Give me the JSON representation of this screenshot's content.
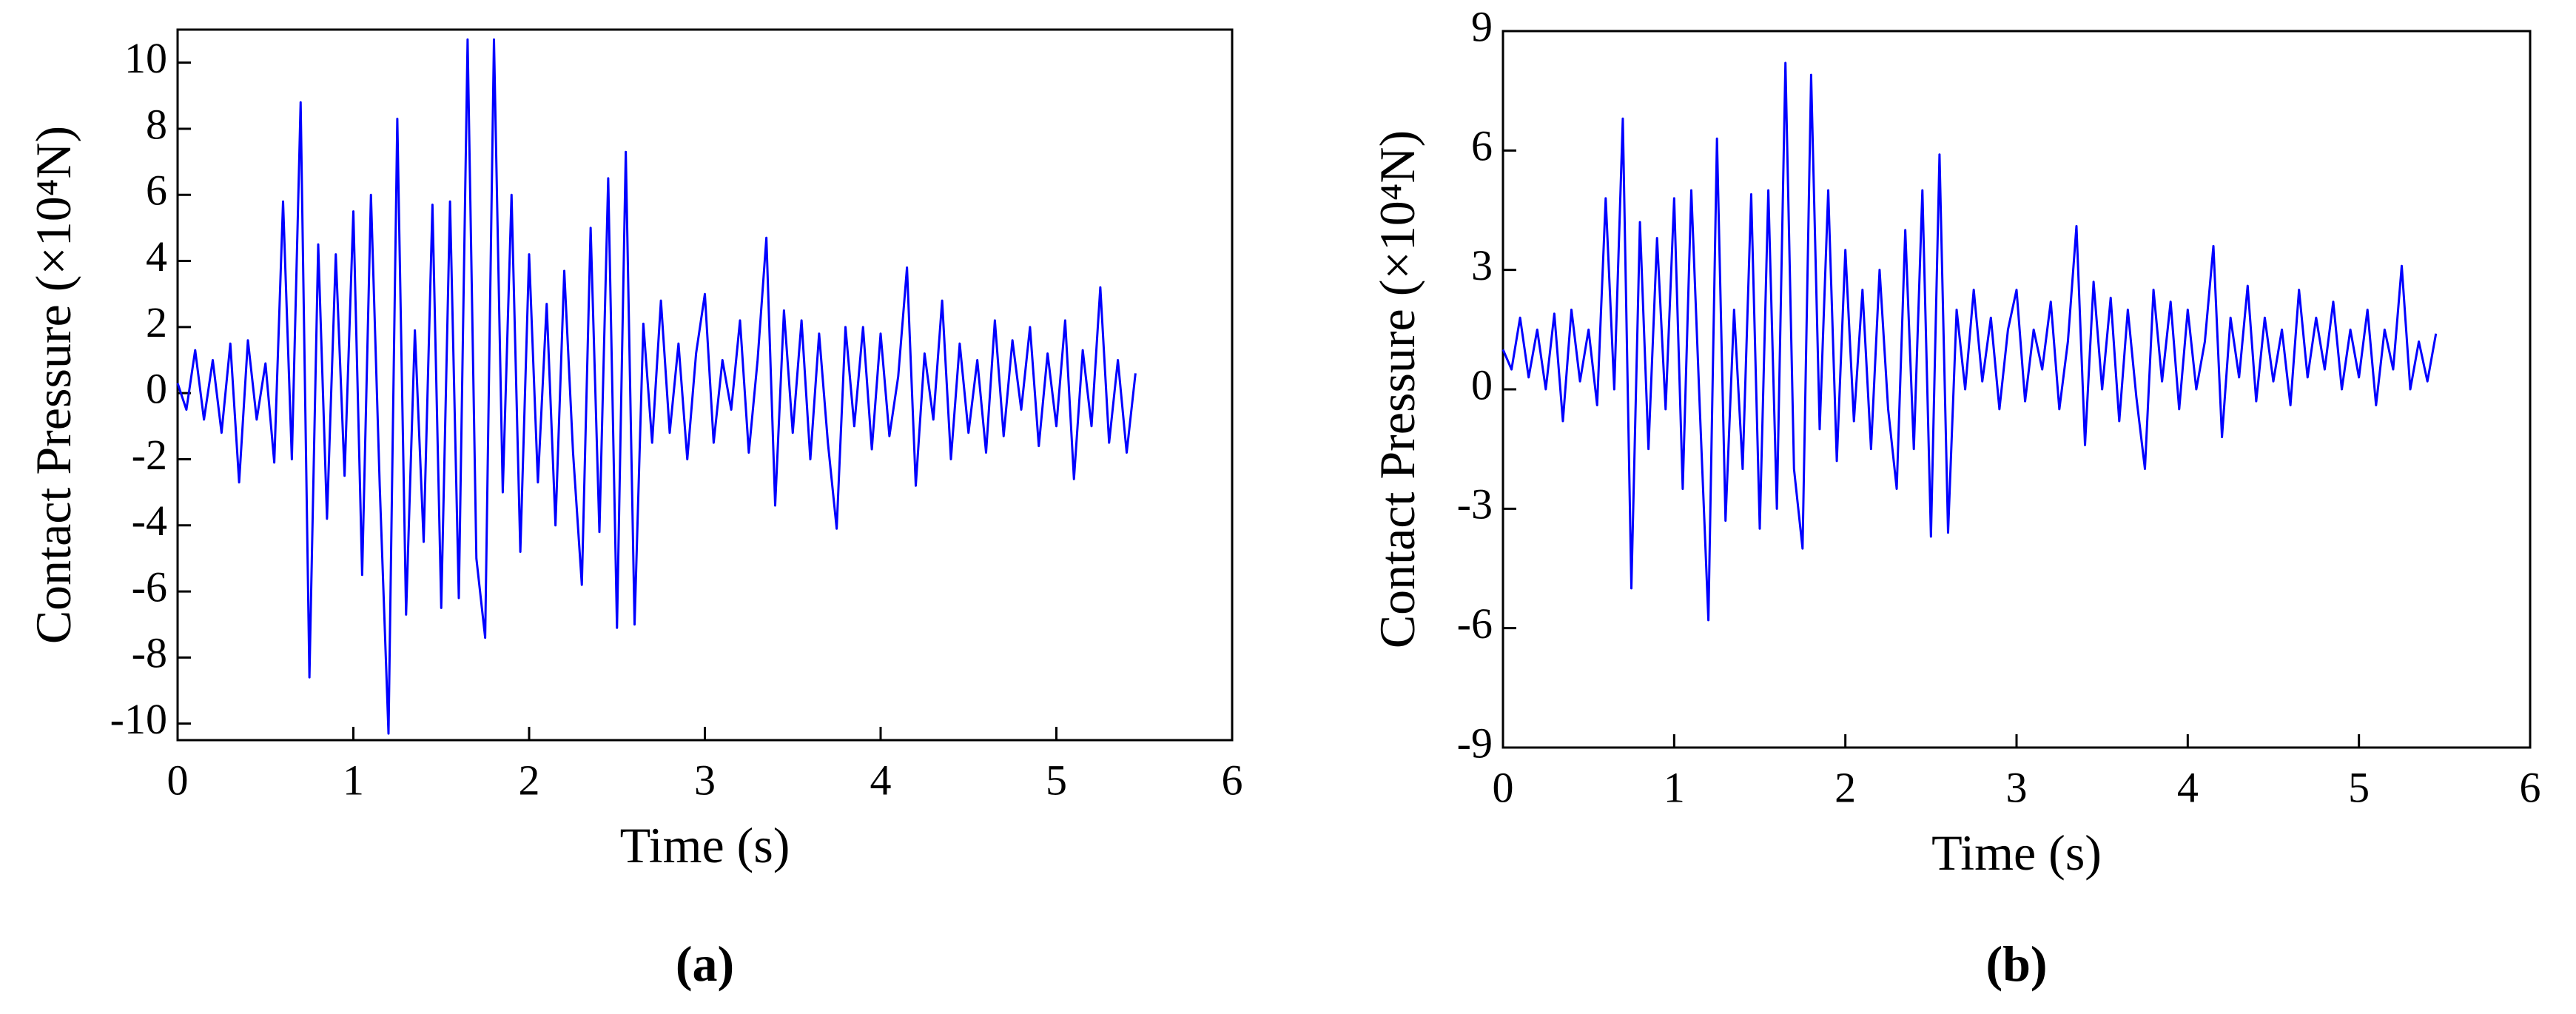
{
  "chart_data": [
    {
      "type": "line",
      "caption": "(a)",
      "xlabel": "Time (s)",
      "ylabel": "Contact Pressure (×10⁴N)",
      "xlim": [
        0,
        6
      ],
      "xticks": [
        0,
        1,
        2,
        3,
        4,
        5,
        6
      ],
      "ylim": [
        -10.5,
        11
      ],
      "yticks": [
        -10,
        -8,
        -6,
        -4,
        -2,
        0,
        2,
        4,
        6,
        8,
        10
      ],
      "x": [
        0,
        0.05,
        0.1,
        0.15,
        0.2,
        0.25,
        0.3,
        0.35,
        0.4,
        0.45,
        0.5,
        0.55,
        0.6,
        0.65,
        0.7,
        0.75,
        0.8,
        0.85,
        0.9,
        0.95,
        1,
        1.05,
        1.1,
        1.15,
        1.2,
        1.25,
        1.3,
        1.35,
        1.4,
        1.45,
        1.5,
        1.55,
        1.6,
        1.65,
        1.7,
        1.75,
        1.8,
        1.85,
        1.9,
        1.95,
        2,
        2.05,
        2.1,
        2.15,
        2.2,
        2.25,
        2.3,
        2.35,
        2.4,
        2.45,
        2.5,
        2.55,
        2.6,
        2.65,
        2.7,
        2.75,
        2.8,
        2.85,
        2.9,
        2.95,
        3,
        3.05,
        3.1,
        3.15,
        3.2,
        3.25,
        3.3,
        3.35,
        3.4,
        3.45,
        3.5,
        3.55,
        3.6,
        3.65,
        3.7,
        3.75,
        3.8,
        3.85,
        3.9,
        3.95,
        4,
        4.05,
        4.1,
        4.15,
        4.2,
        4.25,
        4.3,
        4.35,
        4.4,
        4.45,
        4.5,
        4.55,
        4.6,
        4.65,
        4.7,
        4.75,
        4.8,
        4.85,
        4.9,
        4.95,
        5,
        5.05,
        5.1,
        5.15,
        5.2,
        5.25,
        5.3,
        5.35,
        5.4,
        5.45
      ],
      "series": [
        {
          "color": "#0000ff",
          "values": [
            0.3,
            -0.5,
            1.3,
            -0.8,
            1.0,
            -1.2,
            1.5,
            -2.7,
            1.6,
            -0.8,
            0.9,
            -2.1,
            5.8,
            -2.0,
            8.8,
            -8.6,
            4.5,
            -3.8,
            4.2,
            -2.5,
            5.5,
            -5.5,
            6.0,
            -2.8,
            -10.3,
            8.3,
            -6.7,
            1.9,
            -4.5,
            5.7,
            -6.5,
            5.8,
            -6.2,
            10.7,
            -5.0,
            -7.4,
            10.7,
            -3.0,
            6.0,
            -4.8,
            4.2,
            -2.7,
            2.7,
            -4.0,
            3.7,
            -1.8,
            -5.8,
            5.0,
            -4.2,
            6.5,
            -7.1,
            7.3,
            -7.0,
            2.1,
            -1.5,
            2.8,
            -1.2,
            1.5,
            -2.0,
            1.2,
            3.0,
            -1.5,
            1.0,
            -0.5,
            2.2,
            -1.8,
            1.0,
            4.7,
            -3.4,
            2.5,
            -1.2,
            2.2,
            -2.0,
            1.8,
            -1.5,
            -4.1,
            2.0,
            -1.0,
            2.0,
            -1.7,
            1.8,
            -1.3,
            0.5,
            3.8,
            -2.8,
            1.2,
            -0.8,
            2.8,
            -2.0,
            1.5,
            -1.2,
            1.0,
            -1.8,
            2.2,
            -1.3,
            1.6,
            -0.5,
            2.0,
            -1.6,
            1.2,
            -1.0,
            2.2,
            -2.6,
            1.3,
            -1.0,
            3.2,
            -1.5,
            1.0,
            -1.8,
            0.6
          ]
        }
      ]
    },
    {
      "type": "line",
      "caption": "(b)",
      "xlabel": "Time (s)",
      "ylabel": "Contact Pressure (×10⁴N)",
      "xlim": [
        0,
        6
      ],
      "xticks": [
        0,
        1,
        2,
        3,
        4,
        5,
        6
      ],
      "ylim": [
        -9,
        9
      ],
      "yticks": [
        -9,
        -6,
        -3,
        0,
        3,
        6,
        9
      ],
      "x": [
        0,
        0.05,
        0.1,
        0.15,
        0.2,
        0.25,
        0.3,
        0.35,
        0.4,
        0.45,
        0.5,
        0.55,
        0.6,
        0.65,
        0.7,
        0.75,
        0.8,
        0.85,
        0.9,
        0.95,
        1,
        1.05,
        1.1,
        1.15,
        1.2,
        1.25,
        1.3,
        1.35,
        1.4,
        1.45,
        1.5,
        1.55,
        1.6,
        1.65,
        1.7,
        1.75,
        1.8,
        1.85,
        1.9,
        1.95,
        2,
        2.05,
        2.1,
        2.15,
        2.2,
        2.25,
        2.3,
        2.35,
        2.4,
        2.45,
        2.5,
        2.55,
        2.6,
        2.65,
        2.7,
        2.75,
        2.8,
        2.85,
        2.9,
        2.95,
        3,
        3.05,
        3.1,
        3.15,
        3.2,
        3.25,
        3.3,
        3.35,
        3.4,
        3.45,
        3.5,
        3.55,
        3.6,
        3.65,
        3.7,
        3.75,
        3.8,
        3.85,
        3.9,
        3.95,
        4,
        4.05,
        4.1,
        4.15,
        4.2,
        4.25,
        4.3,
        4.35,
        4.4,
        4.45,
        4.5,
        4.55,
        4.6,
        4.65,
        4.7,
        4.75,
        4.8,
        4.85,
        4.9,
        4.95,
        5,
        5.05,
        5.1,
        5.15,
        5.2,
        5.25,
        5.3,
        5.35,
        5.4,
        5.45
      ],
      "series": [
        {
          "color": "#0000ff",
          "values": [
            1.0,
            0.5,
            1.8,
            0.3,
            1.5,
            0.0,
            1.9,
            -0.8,
            2.0,
            0.2,
            1.5,
            -0.4,
            4.8,
            0.0,
            6.8,
            -5.0,
            4.2,
            -1.5,
            3.8,
            -0.5,
            4.8,
            -2.5,
            5.0,
            -0.5,
            -5.8,
            6.3,
            -3.3,
            2.0,
            -2.0,
            4.9,
            -3.5,
            5.0,
            -3.0,
            8.2,
            -2.0,
            -4.0,
            7.9,
            -1.0,
            5.0,
            -1.8,
            3.5,
            -0.8,
            2.5,
            -1.5,
            3.0,
            -0.5,
            -2.5,
            4.0,
            -1.5,
            5.0,
            -3.7,
            5.9,
            -3.6,
            2.0,
            0.0,
            2.5,
            0.2,
            1.8,
            -0.5,
            1.5,
            2.5,
            -0.3,
            1.5,
            0.5,
            2.2,
            -0.5,
            1.2,
            4.1,
            -1.4,
            2.7,
            0.0,
            2.3,
            -0.8,
            2.0,
            -0.2,
            -2.0,
            2.5,
            0.2,
            2.2,
            -0.5,
            2.0,
            0.0,
            1.2,
            3.6,
            -1.2,
            1.8,
            0.3,
            2.6,
            -0.3,
            1.8,
            0.2,
            1.5,
            -0.4,
            2.5,
            0.3,
            1.8,
            0.5,
            2.2,
            0.0,
            1.5,
            0.3,
            2.0,
            -0.4,
            1.5,
            0.5,
            3.1,
            0.0,
            1.2,
            0.2,
            1.4
          ]
        }
      ]
    }
  ]
}
